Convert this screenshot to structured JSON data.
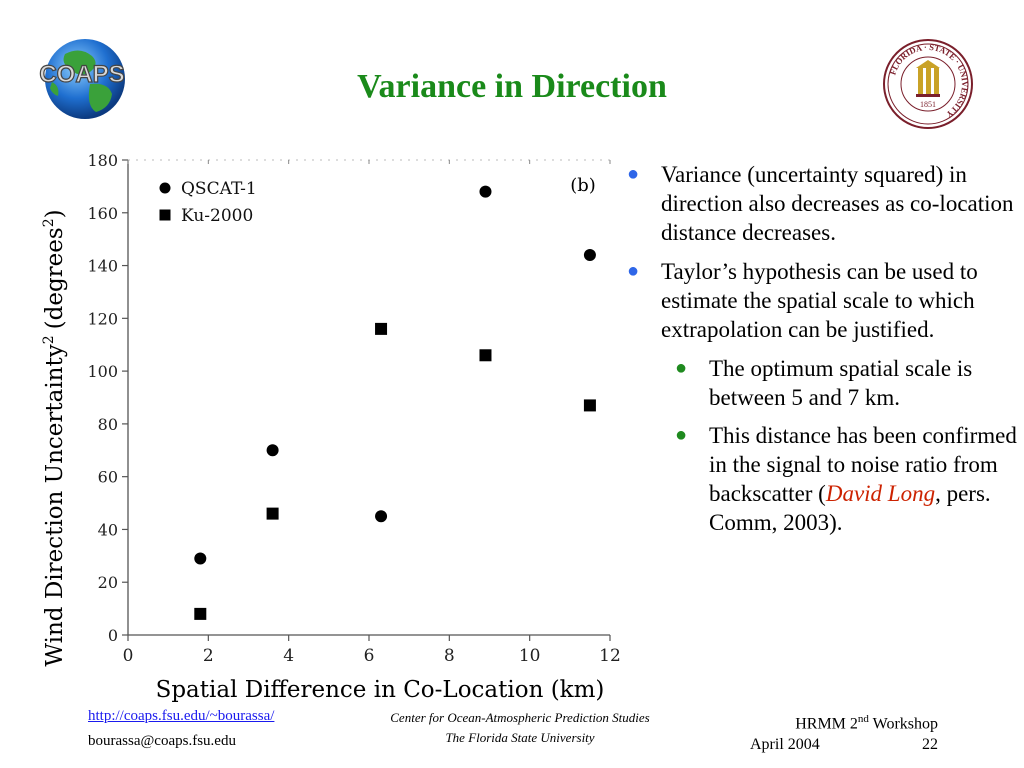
{
  "slide": {
    "title": "Variance in Direction",
    "logo_text": "COAPS"
  },
  "seal": {
    "ring_text": "FLORIDA · STATE · UNIVERSITY",
    "year": "1851",
    "colors": {
      "ring": "#7a1f2b",
      "gold": "#c9a227"
    }
  },
  "chart_data": {
    "type": "scatter",
    "panel_label": "(b)",
    "xlabel": "Spatial Difference in Co-Location (km)",
    "ylabel_main": "Wind Direction Uncertainty",
    "ylabel_sup": "2",
    "ylabel_units_open": "(degrees",
    "ylabel_units_sup": "2",
    "ylabel_units_close": ")",
    "xlim": [
      0,
      12
    ],
    "ylim": [
      0,
      180
    ],
    "xticks": [
      0,
      2,
      4,
      6,
      8,
      10,
      12
    ],
    "yticks": [
      0,
      20,
      40,
      60,
      80,
      100,
      120,
      140,
      160,
      180
    ],
    "legend_position": "top-left",
    "grid": false,
    "series": [
      {
        "name": "QSCAT-1",
        "marker": "circle",
        "points": [
          [
            1.8,
            29
          ],
          [
            3.6,
            70
          ],
          [
            6.3,
            45
          ],
          [
            8.9,
            168
          ],
          [
            11.5,
            144
          ]
        ]
      },
      {
        "name": "Ku-2000",
        "marker": "square",
        "points": [
          [
            1.8,
            8
          ],
          [
            3.6,
            46
          ],
          [
            6.3,
            116
          ],
          [
            8.9,
            106
          ],
          [
            11.5,
            87
          ]
        ]
      }
    ]
  },
  "bullets": [
    {
      "level": 1,
      "text": "Variance (uncertainty squared) in direction also decreases as co-location distance decreases."
    },
    {
      "level": 1,
      "text": "Taylor’s hypothesis can be used to estimate the spatial scale to which extrapolation can be justified."
    },
    {
      "level": 2,
      "text": "The optimum spatial scale is between 5 and 7 km."
    },
    {
      "level": 2,
      "text_before": "This distance has been confirmed in the signal to noise ratio from backscatter (",
      "highlight": "David Long",
      "text_after": ", pers. Comm, 2003)."
    }
  ],
  "footer": {
    "url": "http://coaps.fsu.edu/~bourassa/",
    "email": "bourassa@coaps.fsu.edu",
    "center_line1": "Center for Ocean-Atmospheric Prediction Studies",
    "center_line2": "The Florida State University",
    "workshop_prefix": "HRMM 2",
    "workshop_sup": "nd",
    "workshop_suffix": " Workshop",
    "date": "April 2004",
    "page": "22"
  }
}
